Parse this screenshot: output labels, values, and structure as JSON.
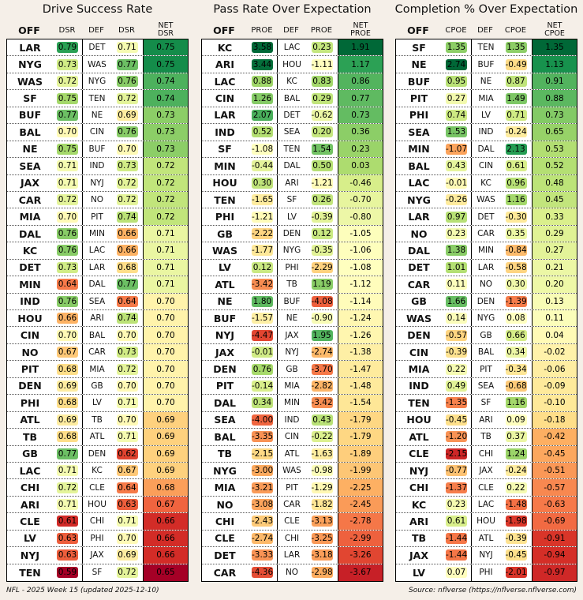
{
  "footer": {
    "left": "NFL - 2025 Week 15 (updated 2025-12-10)",
    "right": "Source: nflverse (https://nflverse.nflverse.com)"
  },
  "chart_data": [
    {
      "type": "table",
      "title": "Drive Success Rate",
      "headers": {
        "off": "OFF",
        "off_val": "DSR",
        "def": "DEF",
        "def_val": "DSR",
        "net1": "NET",
        "net2": "DSR"
      },
      "rows": [
        [
          "LAR",
          "0.79",
          "DET",
          "0.71",
          "0.75"
        ],
        [
          "NYG",
          "0.73",
          "WAS",
          "0.77",
          "0.75"
        ],
        [
          "WAS",
          "0.72",
          "NYG",
          "0.76",
          "0.74"
        ],
        [
          "SF",
          "0.75",
          "TEN",
          "0.72",
          "0.74"
        ],
        [
          "BUF",
          "0.77",
          "NE",
          "0.69",
          "0.73"
        ],
        [
          "BAL",
          "0.70",
          "CIN",
          "0.76",
          "0.73"
        ],
        [
          "NE",
          "0.75",
          "BUF",
          "0.70",
          "0.73"
        ],
        [
          "SEA",
          "0.71",
          "IND",
          "0.73",
          "0.72"
        ],
        [
          "JAX",
          "0.71",
          "NYJ",
          "0.72",
          "0.72"
        ],
        [
          "CAR",
          "0.72",
          "NO",
          "0.72",
          "0.72"
        ],
        [
          "MIA",
          "0.70",
          "PIT",
          "0.74",
          "0.72"
        ],
        [
          "DAL",
          "0.76",
          "MIN",
          "0.66",
          "0.71"
        ],
        [
          "KC",
          "0.76",
          "LAC",
          "0.66",
          "0.71"
        ],
        [
          "DET",
          "0.73",
          "LAR",
          "0.68",
          "0.71"
        ],
        [
          "MIN",
          "0.64",
          "DAL",
          "0.77",
          "0.71"
        ],
        [
          "IND",
          "0.76",
          "SEA",
          "0.64",
          "0.70"
        ],
        [
          "HOU",
          "0.66",
          "ARI",
          "0.74",
          "0.70"
        ],
        [
          "CIN",
          "0.70",
          "BAL",
          "0.70",
          "0.70"
        ],
        [
          "NO",
          "0.67",
          "CAR",
          "0.73",
          "0.70"
        ],
        [
          "PIT",
          "0.68",
          "MIA",
          "0.72",
          "0.70"
        ],
        [
          "DEN",
          "0.69",
          "GB",
          "0.70",
          "0.70"
        ],
        [
          "PHI",
          "0.68",
          "LV",
          "0.71",
          "0.70"
        ],
        [
          "ATL",
          "0.69",
          "TB",
          "0.70",
          "0.69"
        ],
        [
          "TB",
          "0.68",
          "ATL",
          "0.71",
          "0.69"
        ],
        [
          "GB",
          "0.77",
          "DEN",
          "0.62",
          "0.69"
        ],
        [
          "LAC",
          "0.71",
          "KC",
          "0.67",
          "0.69"
        ],
        [
          "CHI",
          "0.72",
          "CLE",
          "0.64",
          "0.68"
        ],
        [
          "ARI",
          "0.71",
          "HOU",
          "0.63",
          "0.67"
        ],
        [
          "CLE",
          "0.61",
          "CHI",
          "0.71",
          "0.66"
        ],
        [
          "LV",
          "0.63",
          "PHI",
          "0.70",
          "0.66"
        ],
        [
          "NYJ",
          "0.63",
          "JAX",
          "0.69",
          "0.66"
        ],
        [
          "TEN",
          "0.59",
          "SF",
          "0.72",
          "0.65"
        ]
      ]
    },
    {
      "type": "table",
      "title": "Pass Rate Over Expectation",
      "headers": {
        "off": "OFF",
        "off_val": "PROE",
        "def": "DEF",
        "def_val": "PROE",
        "net1": "NET",
        "net2": "PROE"
      },
      "rows": [
        [
          "KC",
          "3.58",
          "LAC",
          "0.23",
          "1.91"
        ],
        [
          "ARI",
          "3.44",
          "HOU",
          "-1.11",
          "1.17"
        ],
        [
          "LAC",
          "0.88",
          "KC",
          "0.83",
          "0.86"
        ],
        [
          "CIN",
          "1.26",
          "BAL",
          "0.29",
          "0.77"
        ],
        [
          "LAR",
          "2.07",
          "DET",
          "-0.62",
          "0.73"
        ],
        [
          "IND",
          "0.52",
          "SEA",
          "0.20",
          "0.36"
        ],
        [
          "SF",
          "-1.08",
          "TEN",
          "1.54",
          "0.23"
        ],
        [
          "MIN",
          "-0.44",
          "DAL",
          "0.50",
          "0.03"
        ],
        [
          "HOU",
          "0.30",
          "ARI",
          "-1.21",
          "-0.46"
        ],
        [
          "TEN",
          "-1.65",
          "SF",
          "0.26",
          "-0.70"
        ],
        [
          "PHI",
          "-1.21",
          "LV",
          "-0.39",
          "-0.80"
        ],
        [
          "GB",
          "-2.22",
          "DEN",
          "0.12",
          "-1.05"
        ],
        [
          "WAS",
          "-1.77",
          "NYG",
          "-0.35",
          "-1.06"
        ],
        [
          "LV",
          "0.12",
          "PHI",
          "-2.29",
          "-1.08"
        ],
        [
          "ATL",
          "-3.42",
          "TB",
          "1.19",
          "-1.12"
        ],
        [
          "NE",
          "1.80",
          "BUF",
          "-4.08",
          "-1.14"
        ],
        [
          "BUF",
          "-1.57",
          "NE",
          "-0.90",
          "-1.24"
        ],
        [
          "NYJ",
          "-4.47",
          "JAX",
          "1.95",
          "-1.26"
        ],
        [
          "JAX",
          "-0.01",
          "NYJ",
          "-2.74",
          "-1.38"
        ],
        [
          "DEN",
          "0.76",
          "GB",
          "-3.70",
          "-1.47"
        ],
        [
          "PIT",
          "-0.14",
          "MIA",
          "-2.82",
          "-1.48"
        ],
        [
          "DAL",
          "0.34",
          "MIN",
          "-3.42",
          "-1.54"
        ],
        [
          "SEA",
          "-4.00",
          "IND",
          "0.43",
          "-1.79"
        ],
        [
          "BAL",
          "-3.35",
          "CIN",
          "-0.22",
          "-1.79"
        ],
        [
          "TB",
          "-2.15",
          "ATL",
          "-1.63",
          "-1.89"
        ],
        [
          "NYG",
          "-3.00",
          "WAS",
          "-0.98",
          "-1.99"
        ],
        [
          "MIA",
          "-3.21",
          "PIT",
          "-1.29",
          "-2.25"
        ],
        [
          "NO",
          "-3.08",
          "CAR",
          "-1.82",
          "-2.45"
        ],
        [
          "CHI",
          "-2.43",
          "CLE",
          "-3.13",
          "-2.78"
        ],
        [
          "CLE",
          "-2.74",
          "CHI",
          "-3.25",
          "-2.99"
        ],
        [
          "DET",
          "-3.33",
          "LAR",
          "-3.18",
          "-3.26"
        ],
        [
          "CAR",
          "-4.36",
          "NO",
          "-2.98",
          "-3.67"
        ]
      ]
    },
    {
      "type": "table",
      "title": "Completion % Over Expectation",
      "headers": {
        "off": "OFF",
        "off_val": "CPOE",
        "def": "DEF",
        "def_val": "CPOE",
        "net1": "NET",
        "net2": "CPOE"
      },
      "rows": [
        [
          "SF",
          "1.35",
          "TEN",
          "1.35",
          "1.35"
        ],
        [
          "NE",
          "2.74",
          "BUF",
          "-0.49",
          "1.13"
        ],
        [
          "BUF",
          "0.95",
          "NE",
          "0.87",
          "0.91"
        ],
        [
          "PIT",
          "0.27",
          "MIA",
          "1.49",
          "0.88"
        ],
        [
          "PHI",
          "0.74",
          "LV",
          "0.71",
          "0.73"
        ],
        [
          "SEA",
          "1.53",
          "IND",
          "-0.24",
          "0.65"
        ],
        [
          "MIN",
          "-1.07",
          "DAL",
          "2.13",
          "0.53"
        ],
        [
          "BAL",
          "0.43",
          "CIN",
          "0.61",
          "0.52"
        ],
        [
          "LAC",
          "-0.01",
          "KC",
          "0.96",
          "0.48"
        ],
        [
          "NYG",
          "-0.26",
          "WAS",
          "1.16",
          "0.45"
        ],
        [
          "LAR",
          "0.97",
          "DET",
          "-0.30",
          "0.33"
        ],
        [
          "NO",
          "0.23",
          "CAR",
          "0.35",
          "0.29"
        ],
        [
          "DAL",
          "1.38",
          "MIN",
          "-0.84",
          "0.27"
        ],
        [
          "DET",
          "1.01",
          "LAR",
          "-0.58",
          "0.21"
        ],
        [
          "CAR",
          "0.11",
          "NO",
          "0.30",
          "0.20"
        ],
        [
          "GB",
          "1.66",
          "DEN",
          "-1.39",
          "0.13"
        ],
        [
          "WAS",
          "0.14",
          "NYG",
          "0.08",
          "0.11"
        ],
        [
          "DEN",
          "-0.57",
          "GB",
          "0.66",
          "0.04"
        ],
        [
          "CIN",
          "-0.39",
          "BAL",
          "0.34",
          "-0.02"
        ],
        [
          "MIA",
          "0.22",
          "PIT",
          "-0.34",
          "-0.06"
        ],
        [
          "IND",
          "0.49",
          "SEA",
          "-0.68",
          "-0.09"
        ],
        [
          "TEN",
          "-1.35",
          "SF",
          "1.16",
          "-0.10"
        ],
        [
          "HOU",
          "-0.45",
          "ARI",
          "0.09",
          "-0.18"
        ],
        [
          "ATL",
          "-1.20",
          "TB",
          "0.37",
          "-0.42"
        ],
        [
          "CLE",
          "-2.15",
          "CHI",
          "1.24",
          "-0.45"
        ],
        [
          "NYJ",
          "-0.77",
          "JAX",
          "-0.24",
          "-0.51"
        ],
        [
          "CHI",
          "-1.37",
          "CLE",
          "0.22",
          "-0.57"
        ],
        [
          "KC",
          "0.23",
          "LAC",
          "-1.48",
          "-0.63"
        ],
        [
          "ARI",
          "0.61",
          "HOU",
          "-1.98",
          "-0.69"
        ],
        [
          "TB",
          "-1.44",
          "ATL",
          "-0.39",
          "-0.91"
        ],
        [
          "JAX",
          "-1.44",
          "NYJ",
          "-0.45",
          "-0.94"
        ],
        [
          "LV",
          "0.07",
          "PHI",
          "-2.01",
          "-0.97"
        ]
      ]
    }
  ]
}
